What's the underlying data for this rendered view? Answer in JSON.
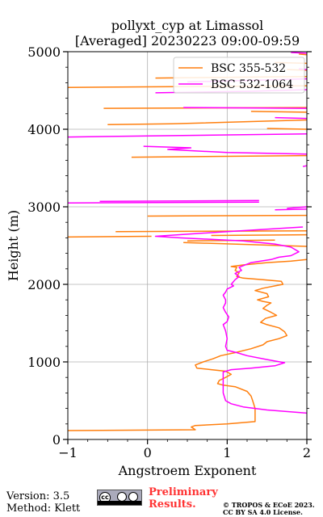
{
  "title_line1": "pollyxt_cyp at Limassol",
  "title_line2": "[Averaged] 20230223 09:00-09:59",
  "footer": {
    "version": "Version: 3.5",
    "method": "Method: Klett",
    "preliminary": "Preliminary\nResults.",
    "copyright_line1": "© TROPOS & ECoE 2023.",
    "copyright_line2": "CC BY SA 4.0 License.",
    "license_badge_icon": "cc-by-sa-icon"
  },
  "chart_data": {
    "type": "line",
    "title": "pollyxt_cyp at Limassol [Averaged] 20230223 09:00-09:59",
    "xlabel": "Angstroem Exponent",
    "ylabel": "Height (m)",
    "xlim": [
      -1,
      2
    ],
    "ylim": [
      0,
      5000
    ],
    "xticks": [
      -1,
      0,
      1,
      2
    ],
    "yticks": [
      0,
      1000,
      2000,
      3000,
      4000,
      5000
    ],
    "grid": true,
    "legend_position": "top-right",
    "series": [
      {
        "name": "BSC 355-532",
        "color": "#ff7f0e",
        "points": [
          [
            -1.0,
            115
          ],
          [
            0.6,
            125
          ],
          [
            0.55,
            160
          ],
          [
            0.6,
            180
          ],
          [
            1.0,
            200
          ],
          [
            1.35,
            230
          ],
          [
            1.35,
            300
          ],
          [
            1.35,
            400
          ],
          [
            1.32,
            500
          ],
          [
            1.3,
            560
          ],
          [
            1.25,
            620
          ],
          [
            1.1,
            680
          ],
          [
            0.95,
            700
          ],
          [
            0.88,
            720
          ],
          [
            0.9,
            760
          ],
          [
            0.98,
            800
          ],
          [
            1.05,
            840
          ],
          [
            0.98,
            880
          ],
          [
            0.8,
            900
          ],
          [
            0.62,
            920
          ],
          [
            0.6,
            960
          ],
          [
            0.7,
            1000
          ],
          [
            0.82,
            1040
          ],
          [
            0.92,
            1080
          ],
          [
            1.1,
            1120
          ],
          [
            1.3,
            1170
          ],
          [
            1.45,
            1220
          ],
          [
            1.5,
            1260
          ],
          [
            1.65,
            1300
          ],
          [
            1.75,
            1340
          ],
          [
            1.72,
            1390
          ],
          [
            1.65,
            1440
          ],
          [
            1.5,
            1480
          ],
          [
            1.42,
            1510
          ],
          [
            1.48,
            1560
          ],
          [
            1.62,
            1600
          ],
          [
            1.55,
            1640
          ],
          [
            1.45,
            1690
          ],
          [
            1.5,
            1730
          ],
          [
            1.55,
            1760
          ],
          [
            1.45,
            1780
          ],
          [
            1.38,
            1800
          ],
          [
            1.52,
            1840
          ],
          [
            1.5,
            1880
          ],
          [
            1.35,
            1920
          ],
          [
            1.45,
            1950
          ],
          [
            1.6,
            1980
          ],
          [
            1.7,
            2000
          ],
          [
            1.68,
            2040
          ],
          [
            1.45,
            2060
          ],
          [
            1.2,
            2080
          ],
          [
            1.12,
            2100
          ],
          [
            1.15,
            2150
          ],
          [
            1.1,
            2180
          ],
          [
            1.12,
            2220
          ],
          [
            1.05,
            2230
          ],
          [
            1.2,
            2250
          ],
          [
            1.5,
            2280
          ],
          [
            1.8,
            2300
          ],
          [
            2.0,
            2320
          ]
        ],
        "spikes": [
          [
            [
              0.45,
              2540
            ],
            [
              2.0,
              2490
            ]
          ],
          [
            [
              0.5,
              2560
            ],
            [
              1.6,
              2570
            ]
          ],
          [
            [
              0.05,
              2620
            ],
            [
              -1.0,
              2610
            ]
          ],
          [
            [
              0.8,
              2630
            ],
            [
              2.0,
              2640
            ]
          ],
          [
            [
              -0.4,
              2680
            ],
            [
              2.0,
              2690
            ]
          ],
          [
            [
              0.0,
              2880
            ],
            [
              2.0,
              2890
            ]
          ],
          [
            [
              -0.2,
              3640
            ],
            [
              2.0,
              3660
            ]
          ],
          [
            [
              -0.5,
              4060
            ],
            [
              0.3,
              4070
            ],
            [
              2.0,
              4120
            ]
          ],
          [
            [
              1.5,
              4010
            ],
            [
              2.0,
              4000
            ]
          ],
          [
            [
              -0.55,
              4270
            ],
            [
              2.0,
              4280
            ]
          ],
          [
            [
              1.3,
              4230
            ],
            [
              2.0,
              4220
            ]
          ],
          [
            [
              -1.0,
              4540
            ],
            [
              2.0,
              4560
            ]
          ],
          [
            [
              0.1,
              4660
            ],
            [
              2.0,
              4680
            ]
          ],
          [
            [
              1.75,
              4770
            ],
            [
              2.0,
              4760
            ]
          ],
          [
            [
              1.6,
              4860
            ],
            [
              2.0,
              4850
            ]
          ],
          [
            [
              1.9,
              4970
            ],
            [
              2.0,
              4960
            ]
          ]
        ]
      },
      {
        "name": "BSC 532-1064",
        "color": "#ff00ff",
        "points": [
          [
            2.0,
            340
          ],
          [
            1.5,
            380
          ],
          [
            1.2,
            420
          ],
          [
            1.05,
            460
          ],
          [
            0.98,
            500
          ],
          [
            0.95,
            600
          ],
          [
            0.95,
            700
          ],
          [
            0.95,
            800
          ],
          [
            0.95,
            870
          ],
          [
            1.05,
            900
          ],
          [
            1.3,
            920
          ],
          [
            1.6,
            950
          ],
          [
            1.72,
            990
          ],
          [
            1.5,
            1030
          ],
          [
            1.25,
            1080
          ],
          [
            1.12,
            1120
          ],
          [
            1.0,
            1150
          ],
          [
            0.98,
            1200
          ],
          [
            1.0,
            1300
          ],
          [
            0.98,
            1400
          ],
          [
            0.95,
            1480
          ],
          [
            1.0,
            1520
          ],
          [
            1.02,
            1580
          ],
          [
            0.98,
            1640
          ],
          [
            0.95,
            1700
          ],
          [
            0.98,
            1760
          ],
          [
            0.98,
            1800
          ],
          [
            0.95,
            1860
          ],
          [
            0.98,
            1900
          ],
          [
            1.0,
            1940
          ],
          [
            1.08,
            1980
          ],
          [
            1.05,
            2000
          ],
          [
            1.1,
            2060
          ],
          [
            1.15,
            2100
          ],
          [
            1.1,
            2140
          ],
          [
            1.18,
            2180
          ],
          [
            1.15,
            2220
          ],
          [
            1.3,
            2280
          ],
          [
            1.55,
            2320
          ],
          [
            1.65,
            2350
          ],
          [
            1.8,
            2370
          ],
          [
            1.9,
            2420
          ],
          [
            1.8,
            2480
          ],
          [
            1.6,
            2520
          ],
          [
            1.2,
            2560
          ],
          [
            0.8,
            2580
          ],
          [
            0.4,
            2600
          ],
          [
            0.1,
            2620
          ],
          [
            1.0,
            2680
          ],
          [
            1.95,
            2740
          ]
        ],
        "spikes": [
          [
            [
              -1.0,
              3050
            ],
            [
              1.4,
              3060
            ]
          ],
          [
            [
              -0.6,
              3070
            ],
            [
              1.4,
              3080
            ]
          ],
          [
            [
              1.75,
              2980
            ],
            [
              2.0,
              3000
            ]
          ],
          [
            [
              1.6,
              2960
            ],
            [
              2.0,
              2970
            ]
          ],
          [
            [
              2.0,
              3530
            ],
            [
              1.95,
              3520
            ]
          ],
          [
            [
              -0.05,
              3780
            ],
            [
              0.55,
              3760
            ],
            [
              0.25,
              3740
            ],
            [
              1.0,
              3700
            ],
            [
              2.0,
              3680
            ]
          ],
          [
            [
              -1.0,
              3900
            ],
            [
              2.0,
              3940
            ]
          ],
          [
            [
              1.6,
              4150
            ],
            [
              2.0,
              4140
            ]
          ],
          [
            [
              0.45,
              4280
            ],
            [
              2.0,
              4270
            ]
          ],
          [
            [
              0.1,
              4470
            ],
            [
              1.3,
              4490
            ],
            [
              2.0,
              4510
            ]
          ],
          [
            [
              0.5,
              4610
            ],
            [
              2.0,
              4650
            ]
          ],
          [
            [
              1.9,
              4780
            ],
            [
              2.0,
              4770
            ]
          ],
          [
            [
              1.8,
              4990
            ],
            [
              2.0,
              4980
            ]
          ]
        ]
      }
    ]
  }
}
